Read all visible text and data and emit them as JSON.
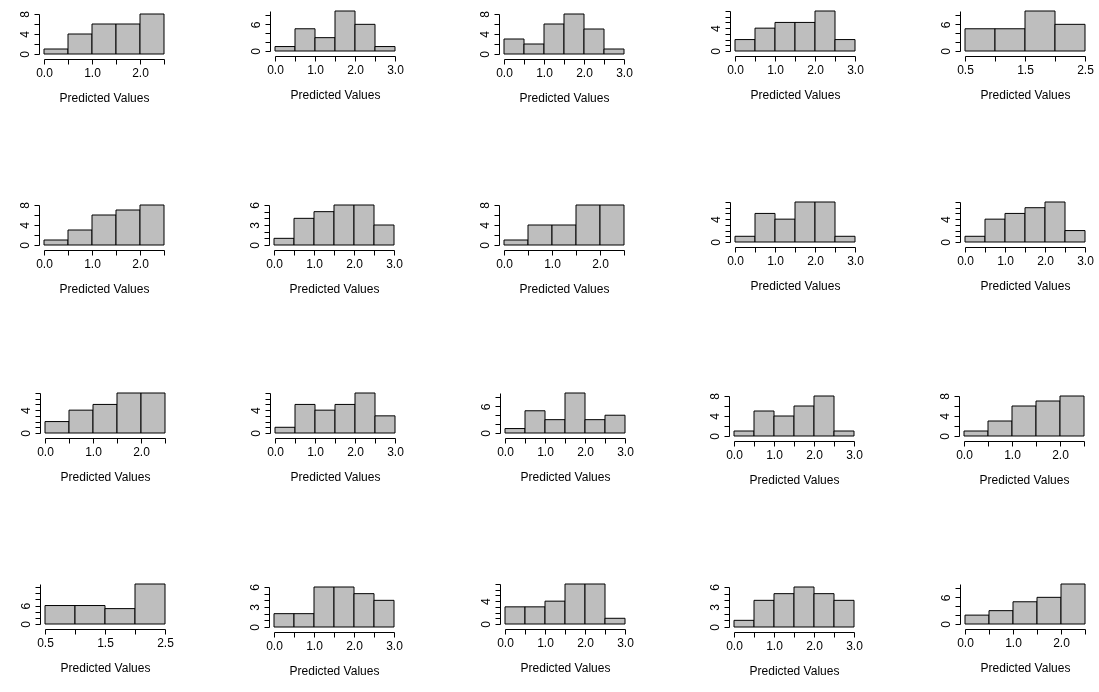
{
  "chart_data": [
    {
      "type": "histogram",
      "xlabel": "Predicted Values",
      "bins": [
        0,
        0.5,
        1,
        1.5,
        2,
        2.5
      ],
      "values": [
        1,
        4,
        6,
        6,
        8
      ],
      "color": "#bebebe",
      "xlim": [
        0,
        2.5
      ],
      "xticks": [
        {
          "value": 0,
          "label": "0.0"
        },
        {
          "value": 0.5,
          "label": null
        },
        {
          "value": 1,
          "label": "1.0"
        },
        {
          "value": 1.5,
          "label": null
        },
        {
          "value": 2,
          "label": "2.0"
        },
        {
          "value": 2.5,
          "label": null
        }
      ],
      "ylim": [
        0,
        8
      ],
      "yticks": [
        0,
        {
          "value": 2,
          "label": null
        },
        4,
        {
          "value": 6,
          "label": null
        },
        8
      ]
    },
    {
      "type": "histogram",
      "xlabel": "Predicted Values",
      "bins": [
        0,
        0.5,
        1,
        1.5,
        2,
        2.5,
        3
      ],
      "values": [
        1,
        5,
        3,
        9,
        6,
        1
      ],
      "color": "#bebebe",
      "xlim": [
        0,
        3
      ],
      "xticks": [
        {
          "value": 0,
          "label": "0.0"
        },
        {
          "value": 0.5,
          "label": null
        },
        {
          "value": 1,
          "label": "1.0"
        },
        {
          "value": 1.5,
          "label": null
        },
        {
          "value": 2,
          "label": "2.0"
        },
        {
          "value": 2.5,
          "label": null
        },
        {
          "value": 3,
          "label": "3.0"
        }
      ],
      "ylim": [
        0,
        9
      ],
      "yticks": [
        0,
        {
          "value": 2,
          "label": null
        },
        {
          "value": 4,
          "label": null
        },
        6,
        {
          "value": 8,
          "label": null
        }
      ]
    },
    {
      "type": "histogram",
      "xlabel": "Predicted Values",
      "bins": [
        0,
        0.5,
        1,
        1.5,
        2,
        2.5,
        3
      ],
      "values": [
        3,
        2,
        6,
        8,
        5,
        1
      ],
      "color": "#bebebe",
      "xlim": [
        0,
        3
      ],
      "xticks": [
        {
          "value": 0,
          "label": "0.0"
        },
        {
          "value": 0.5,
          "label": null
        },
        {
          "value": 1,
          "label": "1.0"
        },
        {
          "value": 1.5,
          "label": null
        },
        {
          "value": 2,
          "label": "2.0"
        },
        {
          "value": 2.5,
          "label": null
        },
        {
          "value": 3,
          "label": "3.0"
        }
      ],
      "ylim": [
        0,
        8
      ],
      "yticks": [
        0,
        {
          "value": 2,
          "label": null
        },
        4,
        {
          "value": 6,
          "label": null
        },
        8
      ]
    },
    {
      "type": "histogram",
      "xlabel": "Predicted Values",
      "bins": [
        0,
        0.5,
        1,
        1.5,
        2,
        2.5,
        3
      ],
      "values": [
        2,
        4,
        5,
        5,
        7,
        2
      ],
      "color": "#bebebe",
      "xlim": [
        0,
        3
      ],
      "xticks": [
        {
          "value": 0,
          "label": "0.0"
        },
        {
          "value": 0.5,
          "label": null
        },
        {
          "value": 1,
          "label": "1.0"
        },
        {
          "value": 1.5,
          "label": null
        },
        {
          "value": 2,
          "label": "2.0"
        },
        {
          "value": 2.5,
          "label": null
        },
        {
          "value": 3,
          "label": "3.0"
        }
      ],
      "ylim": [
        0,
        7
      ],
      "yticks": [
        0,
        {
          "value": 1,
          "label": null
        },
        {
          "value": 2,
          "label": null
        },
        {
          "value": 3,
          "label": null
        },
        4,
        {
          "value": 5,
          "label": null
        },
        {
          "value": 6,
          "label": null
        },
        {
          "value": 7,
          "label": null
        }
      ]
    },
    {
      "type": "histogram",
      "xlabel": "Predicted Values",
      "bins": [
        0.5,
        1,
        1.5,
        2,
        2.5
      ],
      "values": [
        5,
        5,
        9,
        6
      ],
      "color": "#bebebe",
      "xlim": [
        0.5,
        2.5
      ],
      "xticks": [
        0.5,
        {
          "value": 1,
          "label": null
        },
        1.5,
        {
          "value": 2,
          "label": null
        },
        2.5
      ],
      "ylim": [
        0,
        9
      ],
      "yticks": [
        0,
        {
          "value": 2,
          "label": null
        },
        {
          "value": 4,
          "label": null
        },
        6,
        {
          "value": 8,
          "label": null
        }
      ]
    },
    {
      "type": "histogram",
      "xlabel": "Predicted Values",
      "bins": [
        0,
        0.5,
        1,
        1.5,
        2,
        2.5
      ],
      "values": [
        1,
        3,
        6,
        7,
        8
      ],
      "color": "#bebebe",
      "xlim": [
        0,
        2.5
      ],
      "xticks": [
        {
          "value": 0,
          "label": "0.0"
        },
        {
          "value": 0.5,
          "label": null
        },
        {
          "value": 1,
          "label": "1.0"
        },
        {
          "value": 1.5,
          "label": null
        },
        {
          "value": 2,
          "label": "2.0"
        },
        {
          "value": 2.5,
          "label": null
        }
      ],
      "ylim": [
        0,
        8
      ],
      "yticks": [
        0,
        {
          "value": 2,
          "label": null
        },
        4,
        {
          "value": 6,
          "label": null
        },
        8
      ]
    },
    {
      "type": "histogram",
      "xlabel": "Predicted Values",
      "bins": [
        0,
        0.5,
        1,
        1.5,
        2,
        2.5,
        3
      ],
      "values": [
        1,
        4,
        5,
        6,
        6,
        3
      ],
      "color": "#bebebe",
      "xlim": [
        0,
        3
      ],
      "xticks": [
        {
          "value": 0,
          "label": "0.0"
        },
        {
          "value": 0.5,
          "label": null
        },
        {
          "value": 1,
          "label": "1.0"
        },
        {
          "value": 1.5,
          "label": null
        },
        {
          "value": 2,
          "label": "2.0"
        },
        {
          "value": 2.5,
          "label": null
        },
        {
          "value": 3,
          "label": "3.0"
        }
      ],
      "ylim": [
        0,
        6
      ],
      "yticks": [
        0,
        {
          "value": 1,
          "label": null
        },
        {
          "value": 2,
          "label": null
        },
        3,
        {
          "value": 4,
          "label": null
        },
        {
          "value": 5,
          "label": null
        },
        6
      ]
    },
    {
      "type": "histogram",
      "xlabel": "Predicted Values",
      "bins": [
        0,
        0.5,
        1,
        1.5,
        2,
        2.5
      ],
      "values": [
        1,
        4,
        4,
        8,
        8
      ],
      "color": "#bebebe",
      "xlim": [
        0,
        2.5
      ],
      "xticks": [
        {
          "value": 0,
          "label": "0.0"
        },
        {
          "value": 0.5,
          "label": null
        },
        {
          "value": 1,
          "label": "1.0"
        },
        {
          "value": 1.5,
          "label": null
        },
        {
          "value": 2,
          "label": "2.0"
        },
        {
          "value": 2.5,
          "label": null
        }
      ],
      "ylim": [
        0,
        8
      ],
      "yticks": [
        0,
        {
          "value": 2,
          "label": null
        },
        4,
        {
          "value": 6,
          "label": null
        },
        8
      ]
    },
    {
      "type": "histogram",
      "xlabel": "Predicted Values",
      "bins": [
        0,
        0.5,
        1,
        1.5,
        2,
        2.5,
        3
      ],
      "values": [
        1,
        5,
        4,
        7,
        7,
        1
      ],
      "color": "#bebebe",
      "xlim": [
        0,
        3
      ],
      "xticks": [
        {
          "value": 0,
          "label": "0.0"
        },
        {
          "value": 0.5,
          "label": null
        },
        {
          "value": 1,
          "label": "1.0"
        },
        {
          "value": 1.5,
          "label": null
        },
        {
          "value": 2,
          "label": "2.0"
        },
        {
          "value": 2.5,
          "label": null
        },
        {
          "value": 3,
          "label": "3.0"
        }
      ],
      "ylim": [
        0,
        7
      ],
      "yticks": [
        0,
        {
          "value": 1,
          "label": null
        },
        {
          "value": 2,
          "label": null
        },
        {
          "value": 3,
          "label": null
        },
        4,
        {
          "value": 5,
          "label": null
        },
        {
          "value": 6,
          "label": null
        },
        {
          "value": 7,
          "label": null
        }
      ]
    },
    {
      "type": "histogram",
      "xlabel": "Predicted Values",
      "bins": [
        0,
        0.5,
        1,
        1.5,
        2,
        2.5,
        3
      ],
      "values": [
        1,
        4,
        5,
        6,
        7,
        2
      ],
      "color": "#bebebe",
      "xlim": [
        0,
        3
      ],
      "xticks": [
        {
          "value": 0,
          "label": "0.0"
        },
        {
          "value": 0.5,
          "label": null
        },
        {
          "value": 1,
          "label": "1.0"
        },
        {
          "value": 1.5,
          "label": null
        },
        {
          "value": 2,
          "label": "2.0"
        },
        {
          "value": 2.5,
          "label": null
        },
        {
          "value": 3,
          "label": "3.0"
        }
      ],
      "ylim": [
        0,
        7
      ],
      "yticks": [
        0,
        {
          "value": 1,
          "label": null
        },
        {
          "value": 2,
          "label": null
        },
        {
          "value": 3,
          "label": null
        },
        4,
        {
          "value": 5,
          "label": null
        },
        {
          "value": 6,
          "label": null
        },
        {
          "value": 7,
          "label": null
        }
      ]
    },
    {
      "type": "histogram",
      "xlabel": "Predicted Values",
      "bins": [
        0,
        0.5,
        1,
        1.5,
        2,
        2.5
      ],
      "values": [
        2,
        4,
        5,
        7,
        7
      ],
      "color": "#bebebe",
      "xlim": [
        0,
        2.5
      ],
      "xticks": [
        {
          "value": 0,
          "label": "0.0"
        },
        {
          "value": 0.5,
          "label": null
        },
        {
          "value": 1,
          "label": "1.0"
        },
        {
          "value": 1.5,
          "label": null
        },
        {
          "value": 2,
          "label": "2.0"
        },
        {
          "value": 2.5,
          "label": null
        }
      ],
      "ylim": [
        0,
        7
      ],
      "yticks": [
        0,
        {
          "value": 1,
          "label": null
        },
        {
          "value": 2,
          "label": null
        },
        {
          "value": 3,
          "label": null
        },
        4,
        {
          "value": 5,
          "label": null
        },
        {
          "value": 6,
          "label": null
        },
        {
          "value": 7,
          "label": null
        }
      ]
    },
    {
      "type": "histogram",
      "xlabel": "Predicted Values",
      "bins": [
        0,
        0.5,
        1,
        1.5,
        2,
        2.5,
        3
      ],
      "values": [
        1,
        5,
        4,
        5,
        7,
        3
      ],
      "color": "#bebebe",
      "xlim": [
        0,
        3
      ],
      "xticks": [
        {
          "value": 0,
          "label": "0.0"
        },
        {
          "value": 0.5,
          "label": null
        },
        {
          "value": 1,
          "label": "1.0"
        },
        {
          "value": 1.5,
          "label": null
        },
        {
          "value": 2,
          "label": "2.0"
        },
        {
          "value": 2.5,
          "label": null
        },
        {
          "value": 3,
          "label": "3.0"
        }
      ],
      "ylim": [
        0,
        7
      ],
      "yticks": [
        0,
        {
          "value": 1,
          "label": null
        },
        {
          "value": 2,
          "label": null
        },
        {
          "value": 3,
          "label": null
        },
        4,
        {
          "value": 5,
          "label": null
        },
        {
          "value": 6,
          "label": null
        },
        {
          "value": 7,
          "label": null
        }
      ]
    },
    {
      "type": "histogram",
      "xlabel": "Predicted Values",
      "bins": [
        0,
        0.5,
        1,
        1.5,
        2,
        2.5,
        3
      ],
      "values": [
        1,
        5,
        3,
        9,
        3,
        4
      ],
      "color": "#bebebe",
      "xlim": [
        0,
        3
      ],
      "xticks": [
        {
          "value": 0,
          "label": "0.0"
        },
        {
          "value": 0.5,
          "label": null
        },
        {
          "value": 1,
          "label": "1.0"
        },
        {
          "value": 1.5,
          "label": null
        },
        {
          "value": 2,
          "label": "2.0"
        },
        {
          "value": 2.5,
          "label": null
        },
        {
          "value": 3,
          "label": "3.0"
        }
      ],
      "ylim": [
        0,
        9
      ],
      "yticks": [
        0,
        {
          "value": 2,
          "label": null
        },
        {
          "value": 4,
          "label": null
        },
        6,
        {
          "value": 8,
          "label": null
        }
      ]
    },
    {
      "type": "histogram",
      "xlabel": "Predicted Values",
      "bins": [
        0,
        0.5,
        1,
        1.5,
        2,
        2.5,
        3
      ],
      "values": [
        1,
        5,
        4,
        6,
        8,
        1
      ],
      "color": "#bebebe",
      "xlim": [
        0,
        3
      ],
      "xticks": [
        {
          "value": 0,
          "label": "0.0"
        },
        {
          "value": 0.5,
          "label": null
        },
        {
          "value": 1,
          "label": "1.0"
        },
        {
          "value": 1.5,
          "label": null
        },
        {
          "value": 2,
          "label": "2.0"
        },
        {
          "value": 2.5,
          "label": null
        },
        {
          "value": 3,
          "label": "3.0"
        }
      ],
      "ylim": [
        0,
        8
      ],
      "yticks": [
        0,
        {
          "value": 2,
          "label": null
        },
        4,
        {
          "value": 6,
          "label": null
        },
        8
      ]
    },
    {
      "type": "histogram",
      "xlabel": "Predicted Values",
      "bins": [
        0,
        0.5,
        1,
        1.5,
        2,
        2.5
      ],
      "values": [
        1,
        3,
        6,
        7,
        8
      ],
      "color": "#bebebe",
      "xlim": [
        0,
        2.5
      ],
      "xticks": [
        {
          "value": 0,
          "label": "0.0"
        },
        {
          "value": 0.5,
          "label": null
        },
        {
          "value": 1,
          "label": "1.0"
        },
        {
          "value": 1.5,
          "label": null
        },
        {
          "value": 2,
          "label": "2.0"
        },
        {
          "value": 2.5,
          "label": null
        }
      ],
      "ylim": [
        0,
        8
      ],
      "yticks": [
        0,
        {
          "value": 2,
          "label": null
        },
        4,
        {
          "value": 6,
          "label": null
        },
        8
      ]
    },
    {
      "type": "histogram",
      "xlabel": "Predicted Values",
      "bins": [
        0.5,
        1,
        1.5,
        2,
        2.5
      ],
      "values": [
        6,
        6,
        5,
        13
      ],
      "color": "#bebebe",
      "xlim": [
        0.5,
        2.5
      ],
      "xticks": [
        0.5,
        {
          "value": 1,
          "label": null
        },
        1.5,
        {
          "value": 2,
          "label": null
        },
        2.5
      ],
      "ylim": [
        0,
        13
      ],
      "yticks": [
        0,
        {
          "value": 2,
          "label": null
        },
        {
          "value": 4,
          "label": null
        },
        6,
        {
          "value": 8,
          "label": null
        },
        {
          "value": 10,
          "label": null
        },
        {
          "value": 12,
          "label": null
        }
      ]
    },
    {
      "type": "histogram",
      "xlabel": "Predicted Values",
      "bins": [
        0,
        0.5,
        1,
        1.5,
        2,
        2.5,
        3
      ],
      "values": [
        2,
        2,
        6,
        6,
        5,
        4
      ],
      "color": "#bebebe",
      "xlim": [
        0,
        3
      ],
      "xticks": [
        {
          "value": 0,
          "label": "0.0"
        },
        {
          "value": 0.5,
          "label": null
        },
        {
          "value": 1,
          "label": "1.0"
        },
        {
          "value": 1.5,
          "label": null
        },
        {
          "value": 2,
          "label": "2.0"
        },
        {
          "value": 2.5,
          "label": null
        },
        {
          "value": 3,
          "label": "3.0"
        }
      ],
      "ylim": [
        0,
        6
      ],
      "yticks": [
        0,
        {
          "value": 1,
          "label": null
        },
        {
          "value": 2,
          "label": null
        },
        3,
        {
          "value": 4,
          "label": null
        },
        {
          "value": 5,
          "label": null
        },
        6
      ]
    },
    {
      "type": "histogram",
      "xlabel": "Predicted Values",
      "bins": [
        0,
        0.5,
        1,
        1.5,
        2,
        2.5,
        3
      ],
      "values": [
        3,
        3,
        4,
        7,
        7,
        1
      ],
      "color": "#bebebe",
      "xlim": [
        0,
        3
      ],
      "xticks": [
        {
          "value": 0,
          "label": "0.0"
        },
        {
          "value": 0.5,
          "label": null
        },
        {
          "value": 1,
          "label": "1.0"
        },
        {
          "value": 1.5,
          "label": null
        },
        {
          "value": 2,
          "label": "2.0"
        },
        {
          "value": 2.5,
          "label": null
        },
        {
          "value": 3,
          "label": "3.0"
        }
      ],
      "ylim": [
        0,
        7
      ],
      "yticks": [
        0,
        {
          "value": 1,
          "label": null
        },
        {
          "value": 2,
          "label": null
        },
        {
          "value": 3,
          "label": null
        },
        4,
        {
          "value": 5,
          "label": null
        },
        {
          "value": 6,
          "label": null
        },
        {
          "value": 7,
          "label": null
        }
      ]
    },
    {
      "type": "histogram",
      "xlabel": "Predicted Values",
      "bins": [
        0,
        0.5,
        1,
        1.5,
        2,
        2.5,
        3
      ],
      "values": [
        1,
        4,
        5,
        6,
        5,
        4
      ],
      "color": "#bebebe",
      "xlim": [
        0,
        3
      ],
      "xticks": [
        {
          "value": 0,
          "label": "0.0"
        },
        {
          "value": 0.5,
          "label": null
        },
        {
          "value": 1,
          "label": "1.0"
        },
        {
          "value": 1.5,
          "label": null
        },
        {
          "value": 2,
          "label": "2.0"
        },
        {
          "value": 2.5,
          "label": null
        },
        {
          "value": 3,
          "label": "3.0"
        }
      ],
      "ylim": [
        0,
        6
      ],
      "yticks": [
        0,
        {
          "value": 1,
          "label": null
        },
        {
          "value": 2,
          "label": null
        },
        3,
        {
          "value": 4,
          "label": null
        },
        {
          "value": 5,
          "label": null
        },
        6
      ]
    },
    {
      "type": "histogram",
      "xlabel": "Predicted Values",
      "bins": [
        0,
        0.5,
        1,
        1.5,
        2,
        2.5
      ],
      "values": [
        2,
        3,
        5,
        6,
        9
      ],
      "color": "#bebebe",
      "xlim": [
        0,
        2.5
      ],
      "xticks": [
        {
          "value": 0,
          "label": "0.0"
        },
        {
          "value": 0.5,
          "label": null
        },
        {
          "value": 1,
          "label": "1.0"
        },
        {
          "value": 1.5,
          "label": null
        },
        {
          "value": 2,
          "label": "2.0"
        },
        {
          "value": 2.5,
          "label": null
        }
      ],
      "ylim": [
        0,
        9
      ],
      "yticks": [
        0,
        {
          "value": 2,
          "label": null
        },
        {
          "value": 4,
          "label": null
        },
        6,
        {
          "value": 8,
          "label": null
        }
      ]
    }
  ]
}
